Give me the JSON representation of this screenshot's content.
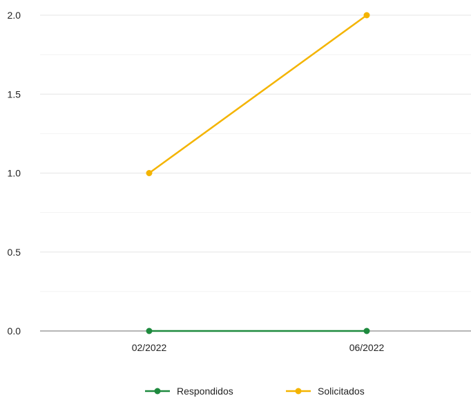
{
  "chart_data": {
    "type": "line",
    "categories": [
      "02/2022",
      "06/2022"
    ],
    "series": [
      {
        "name": "Respondidos",
        "values": [
          0,
          0
        ],
        "color": "#1e8a3e"
      },
      {
        "name": "Solicitados",
        "values": [
          1,
          2
        ],
        "color": "#f4b400"
      }
    ],
    "ylim": [
      0,
      2
    ],
    "yticks": [
      "0.0",
      "0.5",
      "1.0",
      "1.5",
      "2.0"
    ],
    "minor_gridlines": true,
    "grid": true,
    "legend_position": "bottom",
    "title": "",
    "xlabel": "",
    "ylabel": ""
  },
  "colors": {
    "gridline": "#e6e6e6",
    "minor_gridline": "#f2f2f2",
    "baseline": "#9e9e9e",
    "text": "#222222"
  }
}
